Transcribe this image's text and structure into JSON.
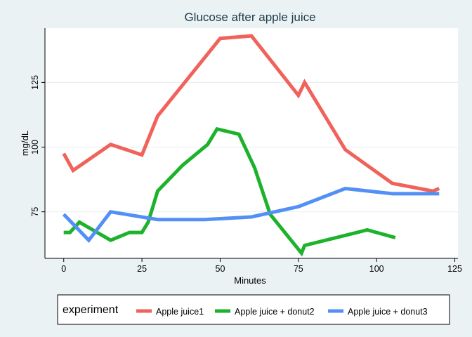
{
  "chart_data": {
    "type": "line",
    "title": "Glucose after apple juice",
    "xlabel": "Minutes",
    "ylabel": "mg/dL",
    "xlim": [
      -6,
      126
    ],
    "ylim": [
      57,
      146
    ],
    "xticks": [
      0,
      25,
      50,
      75,
      100,
      125
    ],
    "yticks": [
      75,
      100,
      125
    ],
    "grid": "horizontal",
    "legend_position": "bottom",
    "legend_title": "experiment",
    "series": [
      {
        "name": "Apple juice1",
        "color": "#f0625a",
        "x": [
          0,
          3,
          15,
          25,
          30,
          50,
          60,
          75,
          77,
          90,
          105,
          118,
          120
        ],
        "y": [
          97.5,
          91,
          101,
          97,
          112,
          142,
          143,
          120,
          125,
          99,
          86,
          83,
          84
        ]
      },
      {
        "name": "Apple juice + donut2",
        "color": "#1db22b",
        "x": [
          0,
          2,
          5,
          15,
          21,
          25,
          27,
          30,
          38,
          46,
          49,
          56,
          61,
          66,
          76,
          77,
          97,
          106
        ],
        "y": [
          67,
          67,
          71,
          64,
          67,
          67,
          71,
          83,
          93,
          101,
          107,
          105,
          92,
          74,
          59,
          62,
          68,
          65
        ]
      },
      {
        "name": "Apple juice + donut3",
        "color": "#5390f5",
        "x": [
          0,
          8,
          15,
          30,
          45,
          60,
          75,
          90,
          105,
          120
        ],
        "y": [
          74,
          64,
          75,
          72,
          72,
          73,
          77,
          84,
          82,
          82
        ]
      }
    ]
  }
}
